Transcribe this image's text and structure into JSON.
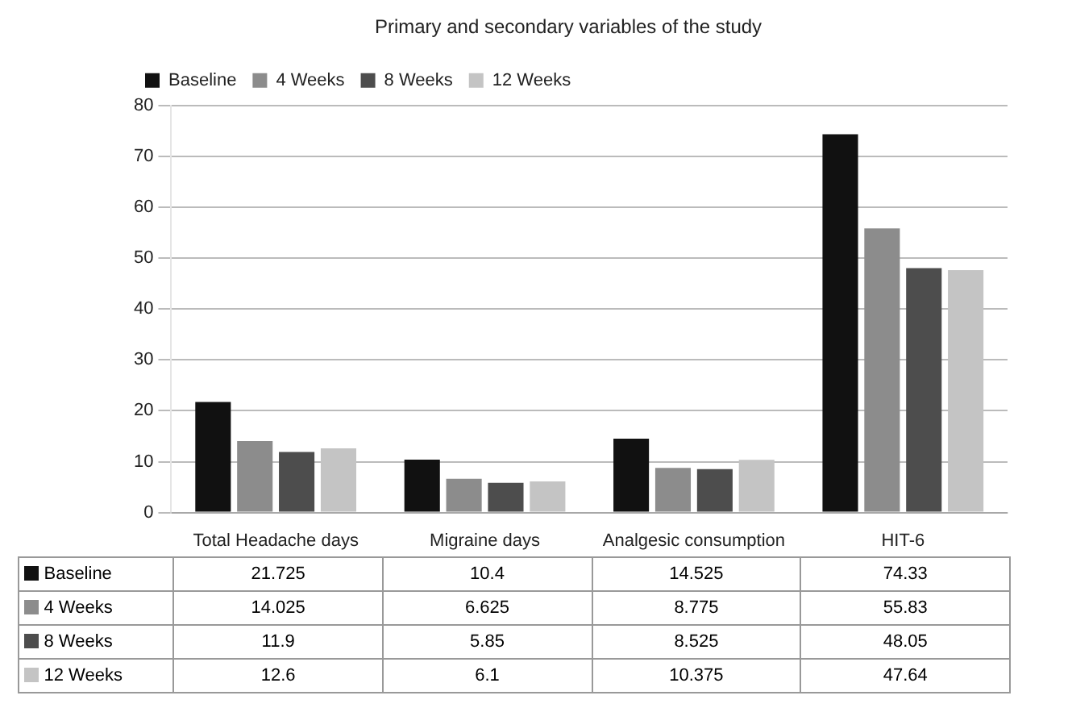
{
  "chart_data": {
    "type": "bar",
    "title": "Primary and secondary variables of the study",
    "categories": [
      "Total Headache days",
      "Migraine days",
      "Analgesic consumption",
      "HIT-6"
    ],
    "series": [
      {
        "name": "Baseline",
        "color": "#111111",
        "values": [
          21.725,
          10.4,
          14.525,
          74.33
        ]
      },
      {
        "name": "4 Weeks",
        "color": "#8c8c8c",
        "values": [
          14.025,
          6.625,
          8.775,
          55.83
        ]
      },
      {
        "name": "8 Weeks",
        "color": "#4d4d4d",
        "values": [
          11.9,
          5.85,
          8.525,
          48.05
        ]
      },
      {
        "name": "12 Weeks",
        "color": "#c4c4c4",
        "values": [
          12.6,
          6.1,
          10.375,
          47.64
        ]
      }
    ],
    "ylim": [
      0,
      80
    ],
    "yticks": [
      0,
      10,
      20,
      30,
      40,
      50,
      60,
      70,
      80
    ],
    "grid": "y",
    "legend": "top left",
    "data_labels": true
  }
}
